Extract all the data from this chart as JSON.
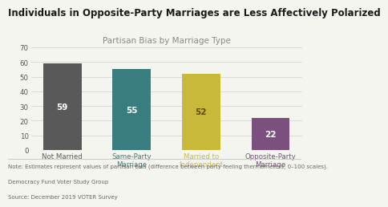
{
  "title": "Individuals in Opposite-Party Marriages are Less Affectively Polarized",
  "subtitle": "Partisan Bias by Marriage Type",
  "categories": [
    "Not Married",
    "Same-Party\nMarriage",
    "Married to\nIndependent",
    "Opposite-Party\nMarriage"
  ],
  "values": [
    59,
    55,
    52,
    22
  ],
  "bar_colors": [
    "#595959",
    "#3a7d7e",
    "#c9b93a",
    "#7b4f7e"
  ],
  "label_colors": [
    "#ffffff",
    "#ffffff",
    "#5a4a00",
    "#ffffff"
  ],
  "ylim": [
    0,
    70
  ],
  "yticks": [
    0,
    10,
    20,
    30,
    40,
    50,
    60,
    70
  ],
  "note1": "Note: Estimates represent values of partisan bias (difference between party feeling thermometers; 0–100 scales).",
  "note2": "Democracy Fund Voter Study Group",
  "note3": "Source: December 2019 VOTER Survey",
  "background_color": "#f5f5f0",
  "tick_colors": [
    "#595959",
    "#3a7d7e",
    "#c9b93a",
    "#7b4f7e"
  ],
  "bar_label_fontsize": 7.5,
  "title_fontsize": 8.5,
  "subtitle_fontsize": 7.5,
  "note_fontsize": 5.0
}
